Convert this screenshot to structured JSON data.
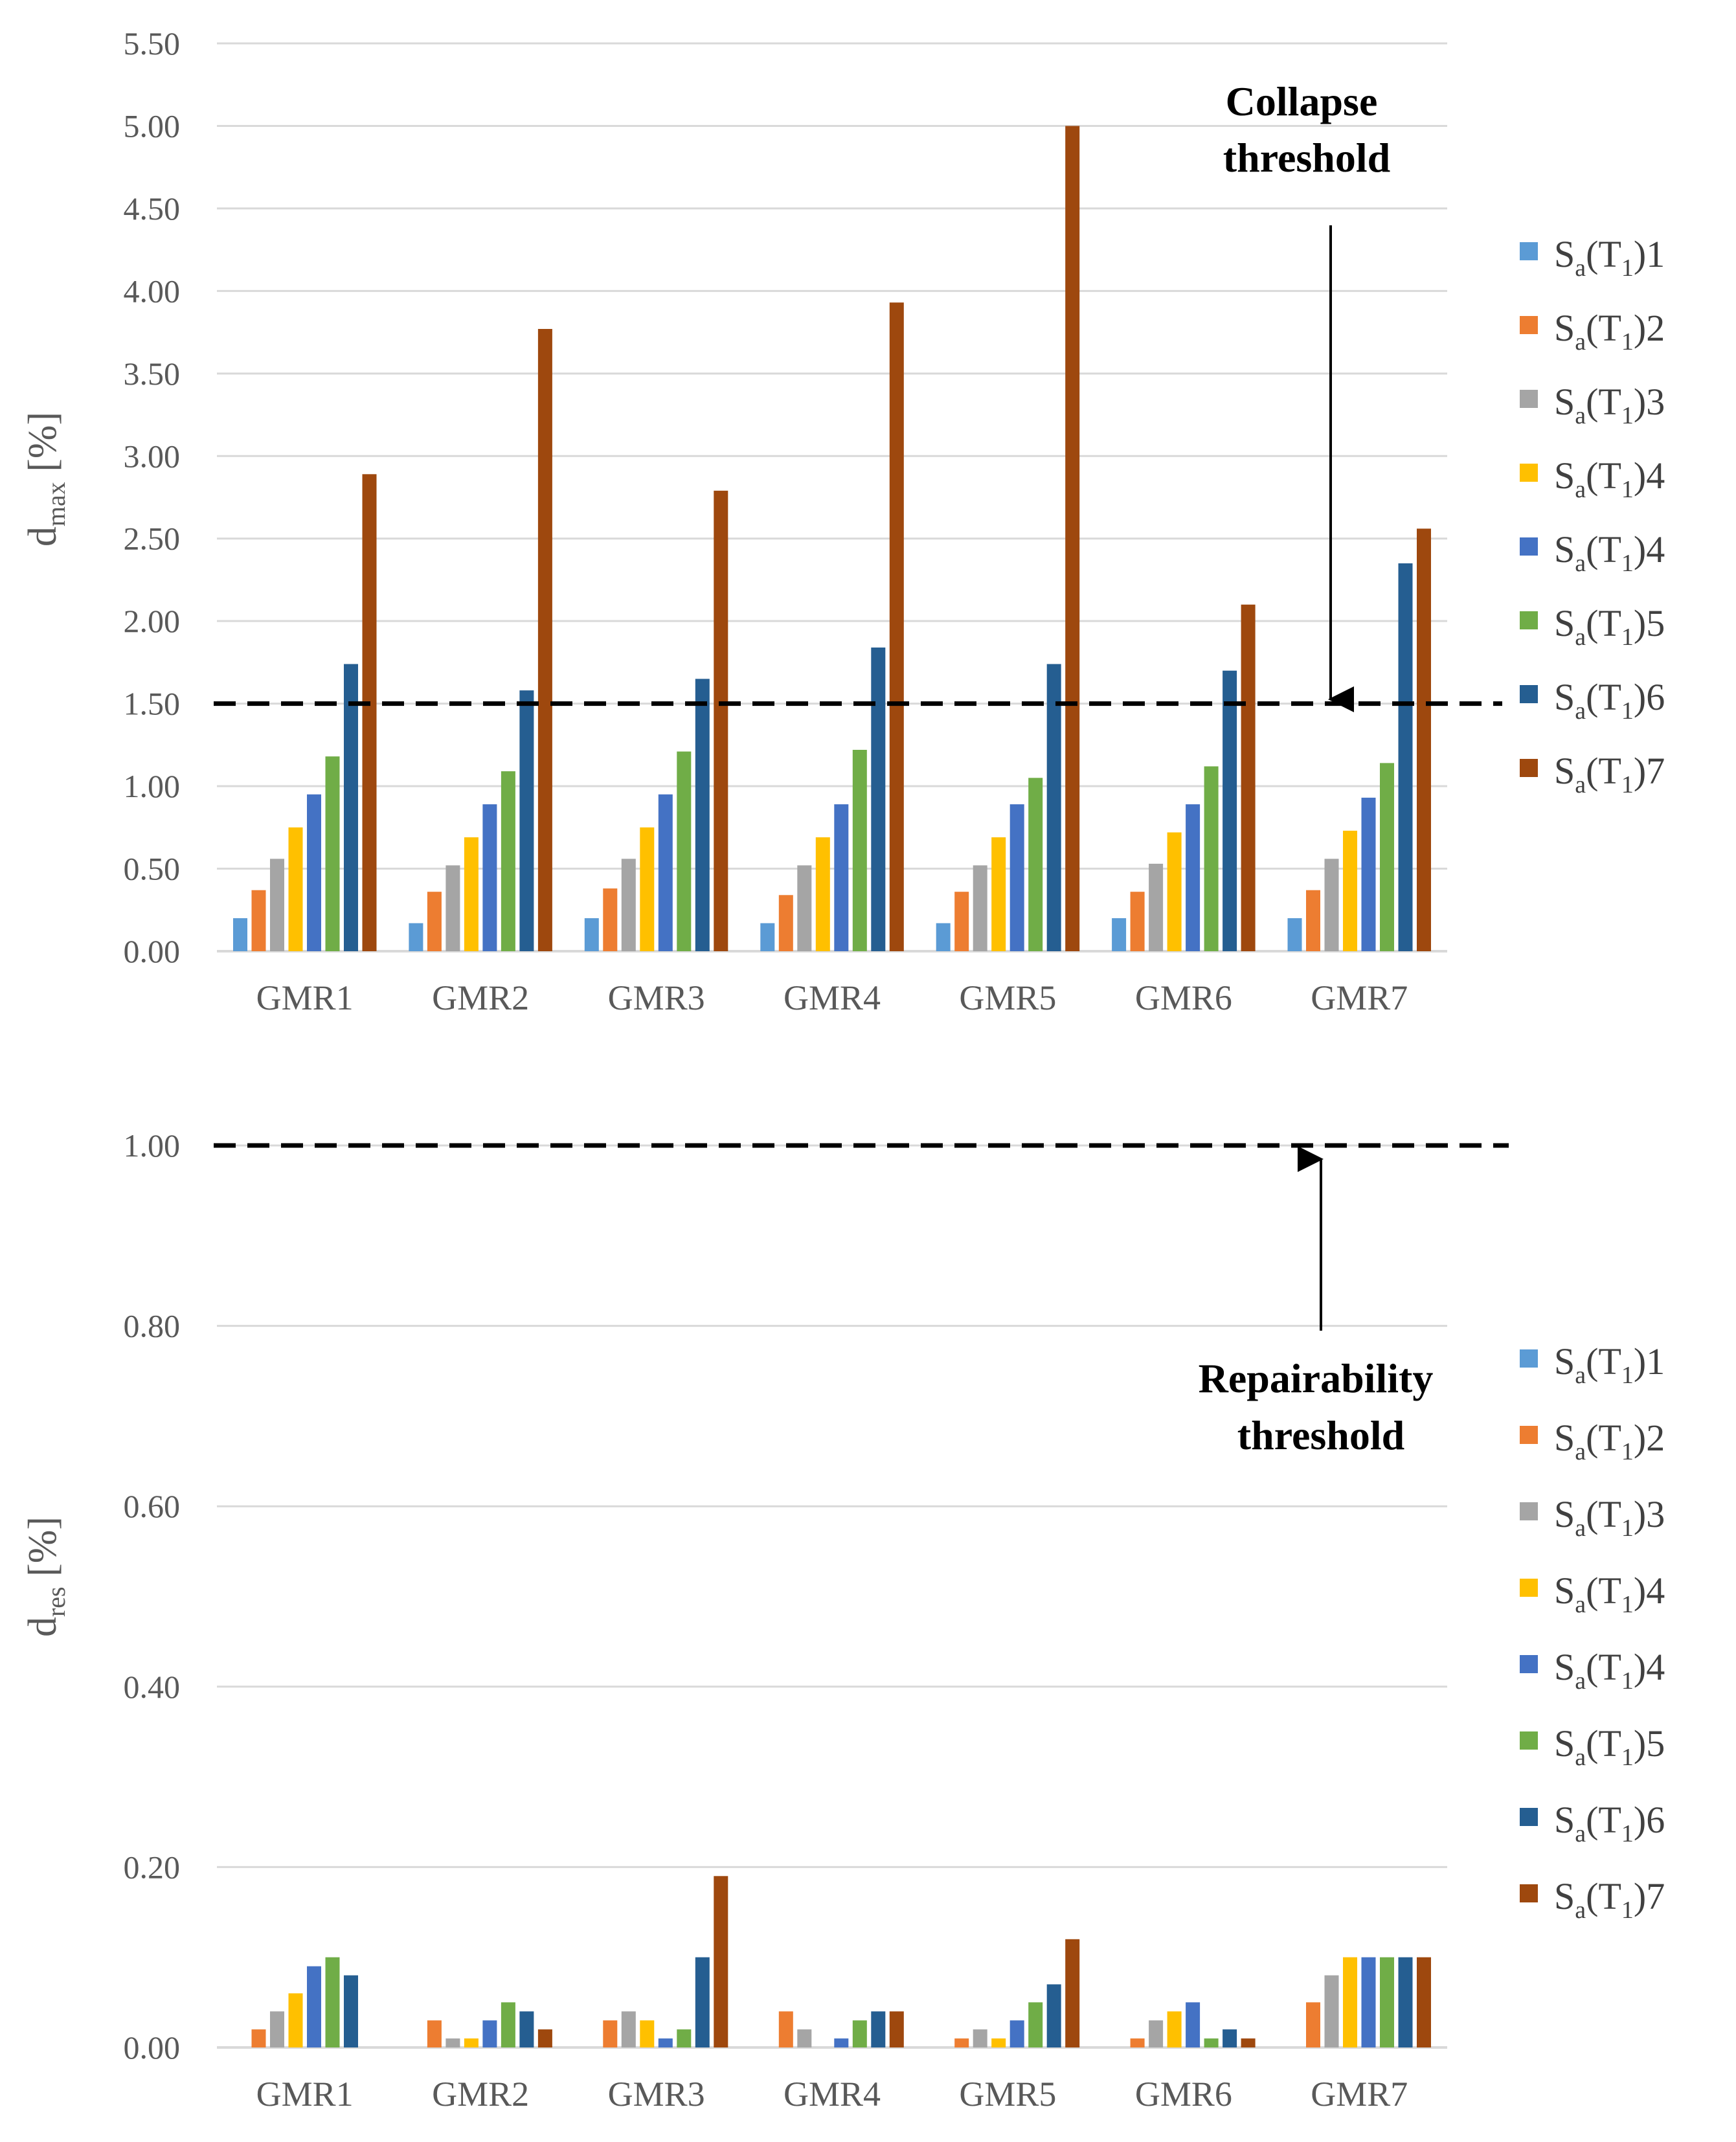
{
  "colors": [
    "#5b9bd5",
    "#ed7d31",
    "#a5a5a5",
    "#ffc000",
    "#4472c4",
    "#70ad47",
    "#255e91",
    "#9e480e"
  ],
  "chart_data": [
    {
      "type": "bar",
      "title": "",
      "ylabel_main": "d",
      "ylabel_sub": "max",
      "ylabel_unit": " [%]",
      "categories": [
        "GMR1",
        "GMR2",
        "GMR3",
        "GMR4",
        "GMR5",
        "GMR6",
        "GMR7"
      ],
      "ylim": [
        0,
        5.5
      ],
      "yticks": [
        "0.00",
        "0.50",
        "1.00",
        "1.50",
        "2.00",
        "2.50",
        "3.00",
        "3.50",
        "4.00",
        "4.50",
        "5.00",
        "5.50"
      ],
      "grid": true,
      "legend_position": "right",
      "threshold": {
        "value": 1.5,
        "label_line1": "Collapse",
        "label_line2": "threshold"
      },
      "series": [
        {
          "name_main": "S",
          "name_sub1": "a",
          "name_mid": "(T",
          "name_sub2": "1",
          "name_end": ")1",
          "values": [
            0.2,
            0.17,
            0.2,
            0.17,
            0.17,
            0.2,
            0.2
          ]
        },
        {
          "name_main": "S",
          "name_sub1": "a",
          "name_mid": "(T",
          "name_sub2": "1",
          "name_end": ")2",
          "values": [
            0.37,
            0.36,
            0.38,
            0.34,
            0.36,
            0.36,
            0.37
          ]
        },
        {
          "name_main": "S",
          "name_sub1": "a",
          "name_mid": "(T",
          "name_sub2": "1",
          "name_end": ")3",
          "values": [
            0.56,
            0.52,
            0.56,
            0.52,
            0.52,
            0.53,
            0.56
          ]
        },
        {
          "name_main": "S",
          "name_sub1": "a",
          "name_mid": "(T",
          "name_sub2": "1",
          "name_end": ")4",
          "values": [
            0.75,
            0.69,
            0.75,
            0.69,
            0.69,
            0.72,
            0.73
          ]
        },
        {
          "name_main": "S",
          "name_sub1": "a",
          "name_mid": "(T",
          "name_sub2": "1",
          "name_end": ")4",
          "values": [
            0.95,
            0.89,
            0.95,
            0.89,
            0.89,
            0.89,
            0.93
          ]
        },
        {
          "name_main": "S",
          "name_sub1": "a",
          "name_mid": "(T",
          "name_sub2": "1",
          "name_end": ")5",
          "values": [
            1.18,
            1.09,
            1.21,
            1.22,
            1.05,
            1.12,
            1.14
          ]
        },
        {
          "name_main": "S",
          "name_sub1": "a",
          "name_mid": "(T",
          "name_sub2": "1",
          "name_end": ")6",
          "values": [
            1.74,
            1.58,
            1.65,
            1.84,
            1.74,
            1.7,
            2.35
          ]
        },
        {
          "name_main": "S",
          "name_sub1": "a",
          "name_mid": "(T",
          "name_sub2": "1",
          "name_end": ")7",
          "values": [
            2.89,
            3.77,
            2.79,
            3.93,
            5.0,
            2.1,
            2.56
          ]
        }
      ]
    },
    {
      "type": "bar",
      "title": "",
      "ylabel_main": "d",
      "ylabel_sub": "res",
      "ylabel_unit": " [%]",
      "categories": [
        "GMR1",
        "GMR2",
        "GMR3",
        "GMR4",
        "GMR5",
        "GMR6",
        "GMR7"
      ],
      "ylim": [
        0,
        1.0
      ],
      "yticks": [
        "0.00",
        "0.20",
        "0.40",
        "0.60",
        "0.80",
        "1.00"
      ],
      "grid": true,
      "legend_position": "right",
      "threshold": {
        "value": 1.0,
        "label_line1": "Repairability",
        "label_line2": "threshold"
      },
      "series": [
        {
          "name_main": "S",
          "name_sub1": "a",
          "name_mid": "(T",
          "name_sub2": "1",
          "name_end": ")1",
          "values": [
            0,
            0,
            0,
            0,
            0,
            0,
            0
          ]
        },
        {
          "name_main": "S",
          "name_sub1": "a",
          "name_mid": "(T",
          "name_sub2": "1",
          "name_end": ")2",
          "values": [
            0.02,
            0.03,
            0.03,
            0.04,
            0.01,
            0.01,
            0.05
          ]
        },
        {
          "name_main": "S",
          "name_sub1": "a",
          "name_mid": "(T",
          "name_sub2": "1",
          "name_end": ")3",
          "values": [
            0.04,
            0.01,
            0.04,
            0.02,
            0.02,
            0.03,
            0.08
          ]
        },
        {
          "name_main": "S",
          "name_sub1": "a",
          "name_mid": "(T",
          "name_sub2": "1",
          "name_end": ")4",
          "values": [
            0.06,
            0.01,
            0.03,
            0.0,
            0.01,
            0.04,
            0.1
          ]
        },
        {
          "name_main": "S",
          "name_sub1": "a",
          "name_mid": "(T",
          "name_sub2": "1",
          "name_end": ")4",
          "values": [
            0.09,
            0.03,
            0.01,
            0.01,
            0.03,
            0.05,
            0.1
          ]
        },
        {
          "name_main": "S",
          "name_sub1": "a",
          "name_mid": "(T",
          "name_sub2": "1",
          "name_end": ")5",
          "values": [
            0.1,
            0.05,
            0.02,
            0.03,
            0.05,
            0.01,
            0.1
          ]
        },
        {
          "name_main": "S",
          "name_sub1": "a",
          "name_mid": "(T",
          "name_sub2": "1",
          "name_end": ")6",
          "values": [
            0.08,
            0.04,
            0.1,
            0.04,
            0.07,
            0.02,
            0.1
          ]
        },
        {
          "name_main": "S",
          "name_sub1": "a",
          "name_mid": "(T",
          "name_sub2": "1",
          "name_end": ")7",
          "values": [
            0.0,
            0.02,
            0.19,
            0.04,
            0.12,
            0.01,
            0.1
          ]
        }
      ]
    }
  ]
}
